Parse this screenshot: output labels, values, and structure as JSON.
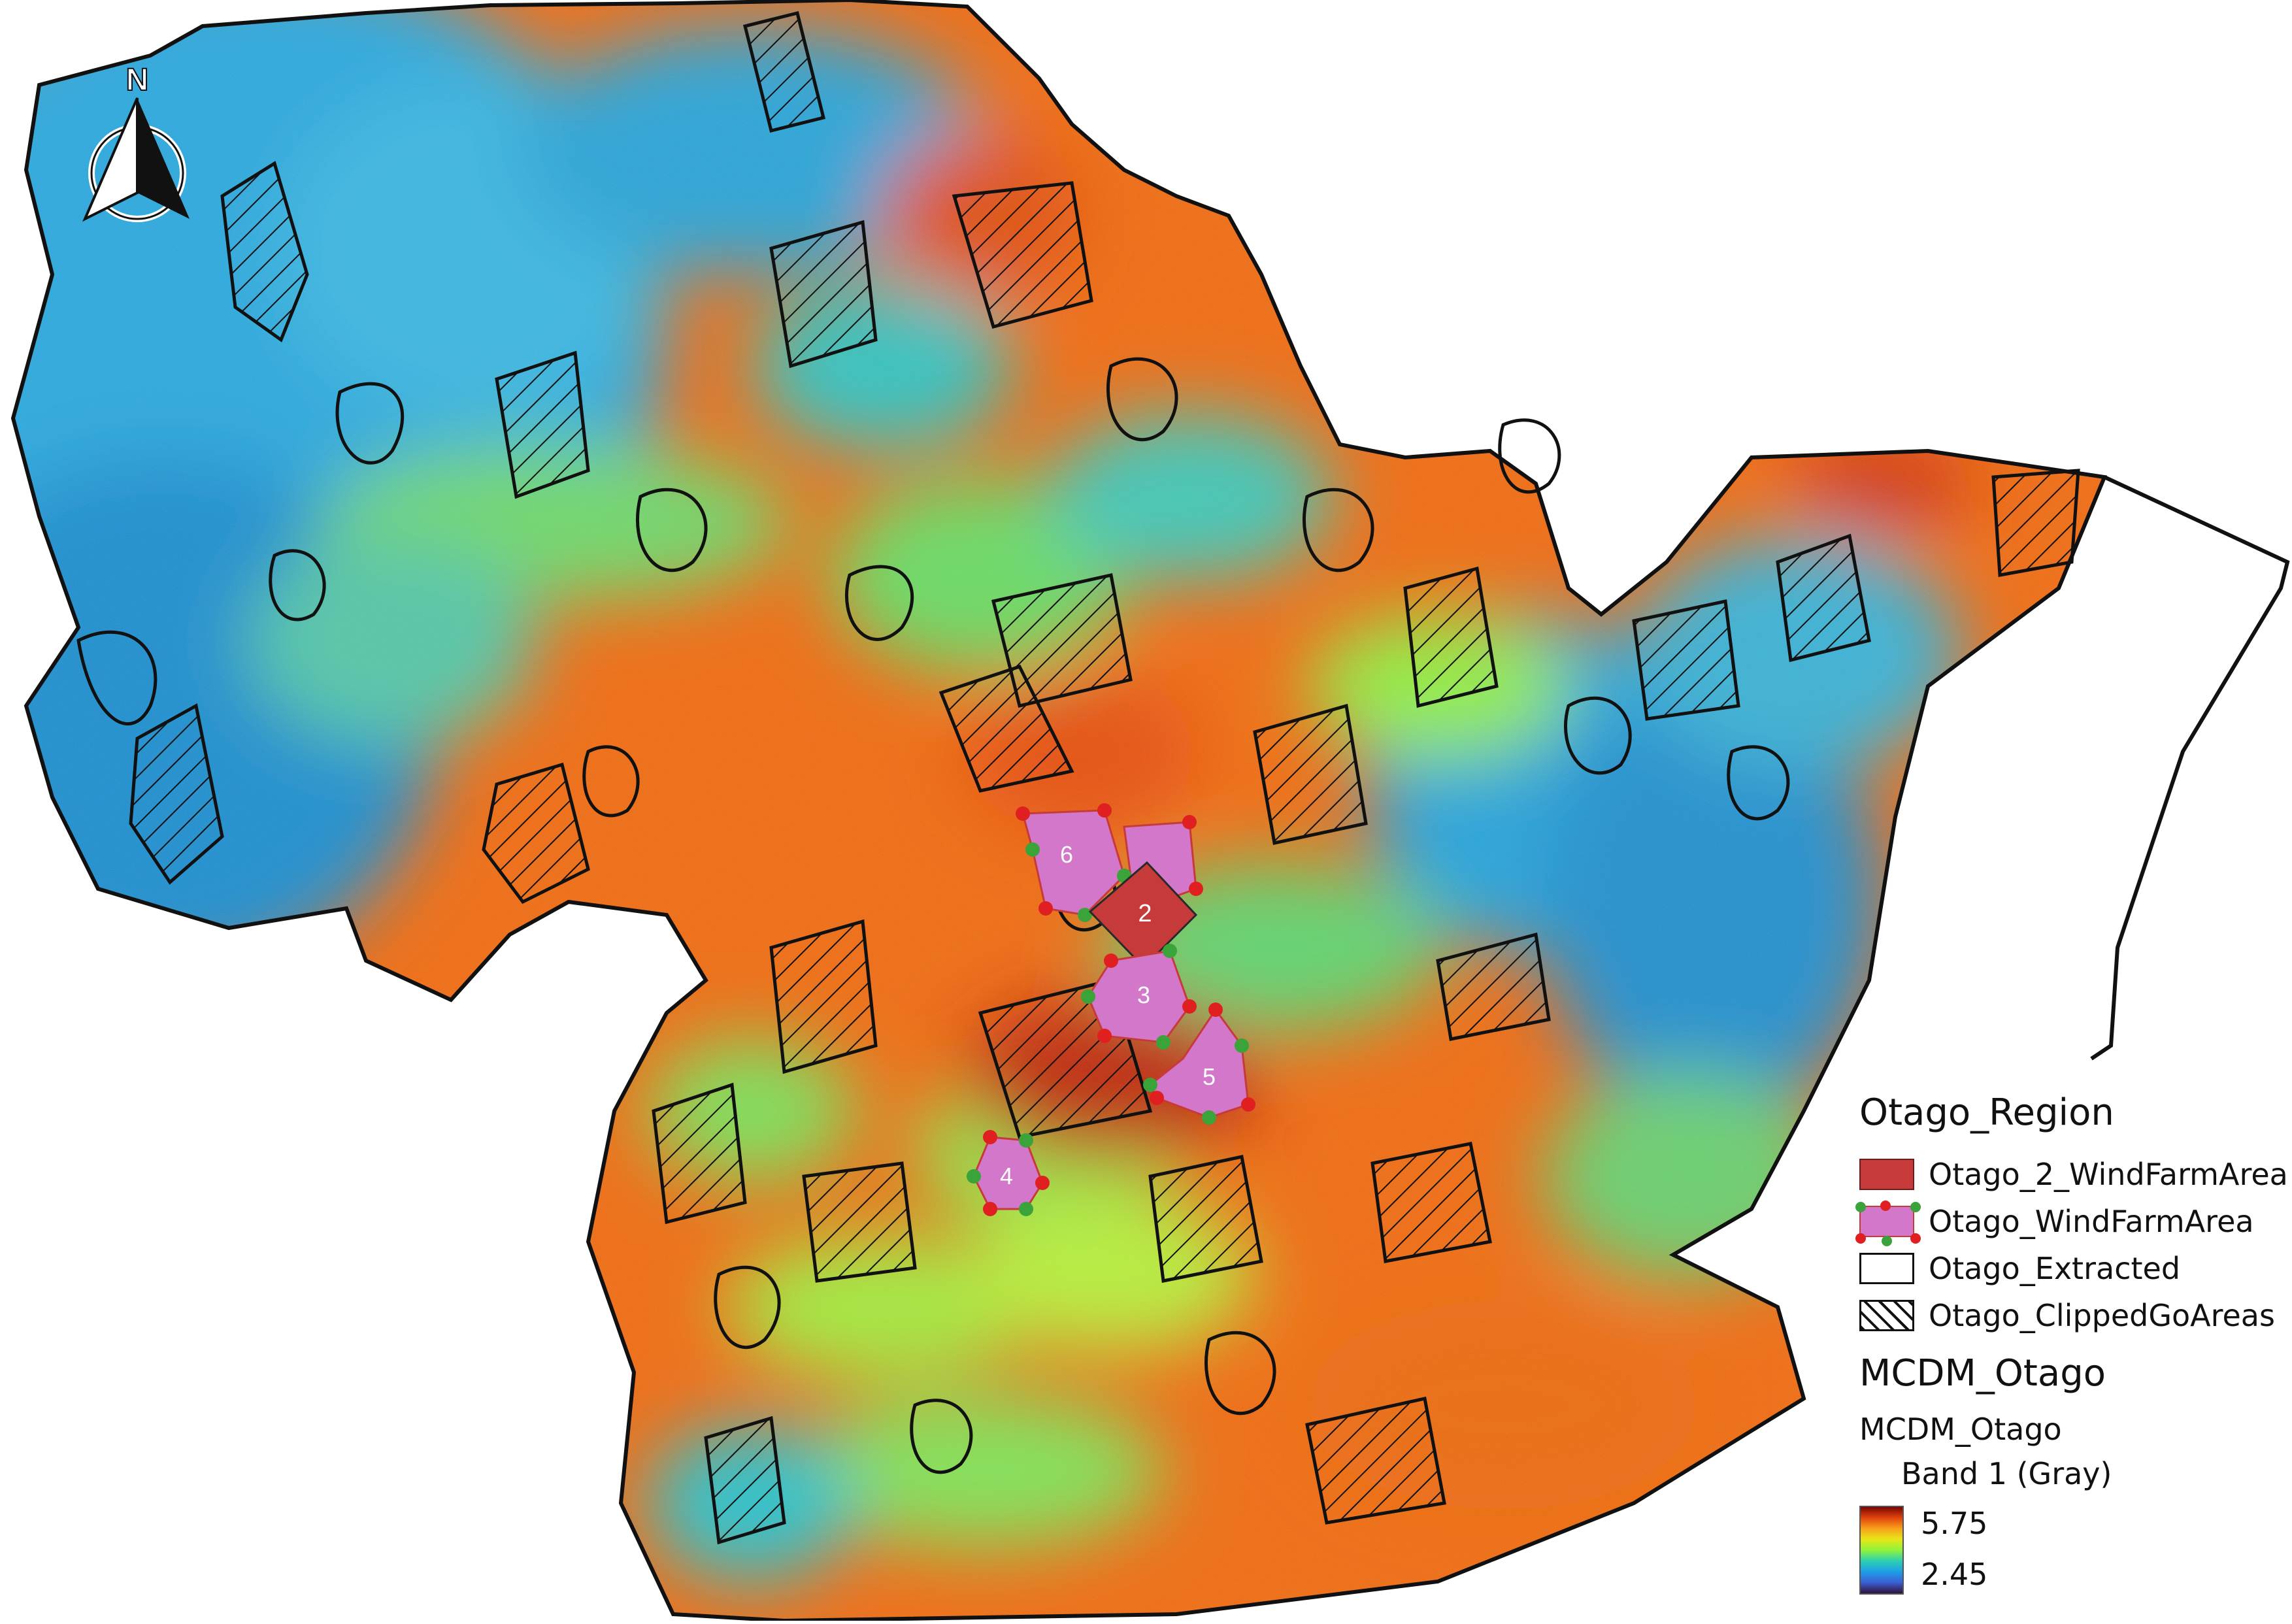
{
  "map": {
    "north_arrow_label": "N",
    "site_labels": [
      "2",
      "3",
      "4",
      "5",
      "6"
    ]
  },
  "legend": {
    "group_title": "Otago_Region",
    "layers": [
      {
        "label": "Otago_2_WindFarmArea",
        "fill": "#c73a3a"
      },
      {
        "label": "Otago_WindFarmArea",
        "fill": "#d277c9"
      },
      {
        "label": "Otago_Extracted",
        "fill": "#ffffff"
      },
      {
        "label": "Otago_ClippedGoAreas",
        "fill": "hatched"
      }
    ],
    "raster_title": "MCDM_Otago",
    "raster_layer": "MCDM_Otago",
    "band": "Band 1 (Gray)",
    "max_label": "5.75",
    "min_label": "2.45"
  },
  "colors": {
    "high": "#7a0403",
    "orange": "#f26b0f",
    "yellow_green": "#a6ef32",
    "cyan": "#2cb9e2",
    "low": "#30123b"
  }
}
